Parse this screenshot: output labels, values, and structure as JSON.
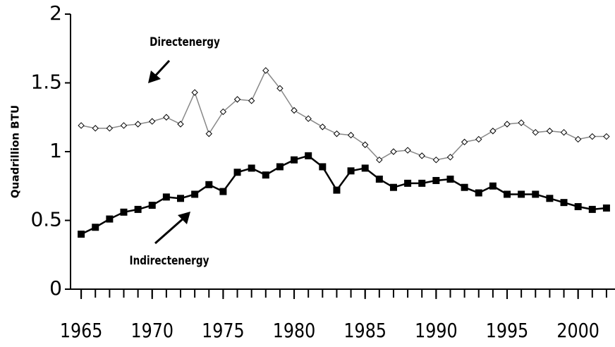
{
  "chart_data": {
    "type": "line",
    "y_label": "Quadrillion BTU",
    "x": [
      1965,
      1966,
      1967,
      1968,
      1969,
      1970,
      1971,
      1972,
      1973,
      1974,
      1975,
      1976,
      1977,
      1978,
      1979,
      1980,
      1981,
      1982,
      1983,
      1984,
      1985,
      1986,
      1987,
      1988,
      1989,
      1990,
      1991,
      1992,
      1993,
      1994,
      1995,
      1996,
      1997,
      1998,
      1999,
      2000,
      2001,
      2002
    ],
    "series": [
      {
        "name": "Directenergy",
        "color": "#888888",
        "marker": "diamond",
        "values": [
          1.19,
          1.17,
          1.17,
          1.19,
          1.2,
          1.22,
          1.25,
          1.2,
          1.43,
          1.13,
          1.29,
          1.38,
          1.37,
          1.59,
          1.46,
          1.3,
          1.24,
          1.18,
          1.13,
          1.12,
          1.05,
          0.94,
          1.0,
          1.01,
          0.97,
          0.94,
          0.96,
          1.07,
          1.09,
          1.15,
          1.2,
          1.21,
          1.14,
          1.15,
          1.14,
          1.09,
          1.11,
          1.11
        ]
      },
      {
        "name": "Indirectenergy",
        "color": "#000000",
        "marker": "square",
        "values": [
          0.4,
          0.45,
          0.51,
          0.56,
          0.58,
          0.61,
          0.67,
          0.66,
          0.69,
          0.76,
          0.71,
          0.85,
          0.88,
          0.83,
          0.89,
          0.94,
          0.97,
          0.89,
          0.72,
          0.86,
          0.88,
          0.8,
          0.74,
          0.77,
          0.77,
          0.79,
          0.8,
          0.74,
          0.7,
          0.75,
          0.69,
          0.69,
          0.69,
          0.66,
          0.63,
          0.6,
          0.58,
          0.59
        ]
      }
    ],
    "xlim": [
      1964.25,
      2002.6
    ],
    "xticks": [
      1965,
      1970,
      1975,
      1980,
      1985,
      1990,
      1995,
      2000
    ],
    "xminorticks": [
      1965,
      1966,
      1967,
      1968,
      1969,
      1970,
      1971,
      1972,
      1973,
      1974,
      1975,
      1976,
      1977,
      1978,
      1979,
      1980,
      1981,
      1982,
      1983,
      1984,
      1985,
      1986,
      1987,
      1988,
      1989,
      1990,
      1991,
      1992,
      1993,
      1994,
      1995,
      1996,
      1997,
      1998,
      1999,
      2000,
      2001,
      2002
    ],
    "ylim": [
      0,
      2
    ],
    "yticks": [
      0,
      0.5,
      1,
      1.5,
      2
    ],
    "grid": false
  }
}
